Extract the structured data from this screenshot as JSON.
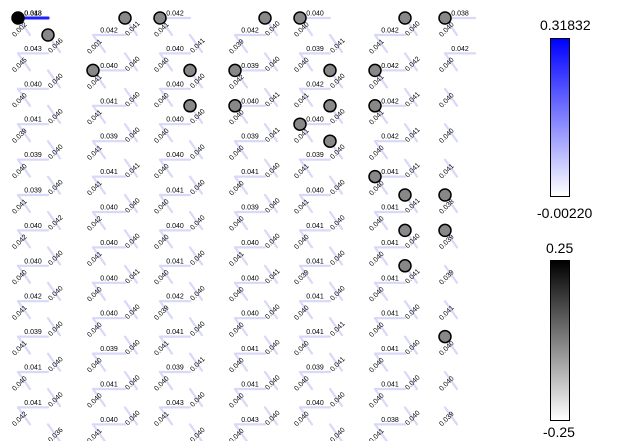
{
  "lattice": {
    "rows": [
      {
        "vl": [
          "0.002",
          "0.001",
          "0.041",
          "0.039",
          "0.040",
          "0.041",
          "0.040"
        ],
        "vr": [
          "0.046",
          "0.041",
          "0.041",
          "0.040",
          "0.041",
          "0.040"
        ],
        "h": [
          "0.318",
          "0.043",
          "0.042",
          "0.042",
          "0.042",
          "0.040",
          "0.042",
          "0.038"
        ]
      },
      {
        "vl": [
          "0.045",
          "0.041",
          "0.040",
          "0.042",
          "0.040",
          "0.041",
          "0.040"
        ],
        "vr": [
          "0.040",
          "0.040",
          "0.040",
          "0.040",
          "0.040",
          "0.042"
        ],
        "h": [
          "0.043",
          "0.040",
          "0.040",
          "0.039",
          "0.039",
          "0.042",
          "0.042"
        ]
      },
      {
        "vl": [
          "0.040",
          "0.041",
          "0.040",
          "0.040",
          "0.041",
          "0.041",
          "0.040"
        ],
        "vr": [
          "0.040",
          "0.040",
          "0.040",
          "0.041",
          "0.040",
          "0.041"
        ],
        "h": [
          "0.040",
          "0.041",
          "0.040",
          "0.040",
          "0.042",
          "0.042"
        ]
      },
      {
        "vl": [
          "0.039",
          "0.041",
          "0.040",
          "0.040",
          "0.041",
          "0.040",
          "0.040"
        ],
        "vr": [
          "0.040",
          "0.040",
          "0.040",
          "0.041",
          "0.040",
          "0.041"
        ],
        "h": [
          "0.041",
          "0.039",
          "0.040",
          "0.039",
          "0.040",
          "0.042"
        ]
      },
      {
        "vl": [
          "0.040",
          "0.041",
          "0.040",
          "0.040",
          "0.041",
          "0.040",
          "0.041"
        ],
        "vr": [
          "0.040",
          "0.041",
          "0.040",
          "0.040",
          "0.040",
          "0.041"
        ],
        "h": [
          "0.039",
          "0.041",
          "0.040",
          "0.041",
          "0.039",
          "0.041"
        ]
      },
      {
        "vl": [
          "0.041",
          "0.042",
          "0.040",
          "0.040",
          "0.041",
          "0.040",
          "0.038"
        ],
        "vr": [
          "0.042",
          "0.040",
          "0.040",
          "0.040",
          "0.040",
          "0.041"
        ],
        "h": [
          "0.039",
          "0.040",
          "0.041",
          "0.039",
          "0.040",
          "0.041"
        ]
      },
      {
        "vl": [
          "0.042",
          "0.041",
          "0.040",
          "0.041",
          "0.040",
          "0.040",
          "0.039"
        ],
        "vr": [
          "0.040",
          "0.040",
          "0.040",
          "0.040",
          "0.040",
          "0.040"
        ],
        "h": [
          "0.040",
          "0.040",
          "0.040",
          "0.040",
          "0.041",
          "0.041"
        ]
      },
      {
        "vl": [
          "0.040",
          "0.040",
          "0.040",
          "0.040",
          "0.039",
          "0.040",
          "0.039"
        ],
        "vr": [
          "0.040",
          "0.041",
          "0.040",
          "0.041",
          "0.040",
          "0.041"
        ],
        "h": [
          "0.040",
          "0.040",
          "0.041",
          "0.040",
          "0.041",
          "0.041"
        ]
      },
      {
        "vl": [
          "0.041",
          "0.040",
          "0.039",
          "0.040",
          "0.040",
          "0.040",
          "0.041"
        ],
        "vr": [
          "0.040",
          "0.040",
          "0.040",
          "0.040",
          "0.041",
          "0.040"
        ],
        "h": [
          "0.042",
          "0.040",
          "0.042",
          "0.040",
          "0.041",
          "0.041"
        ]
      },
      {
        "vl": [
          "0.041",
          "0.040",
          "0.041",
          "0.040",
          "0.040",
          "0.040",
          "0.040"
        ],
        "vr": [
          "0.040",
          "0.040",
          "0.041",
          "0.040",
          "0.041",
          "0.040"
        ],
        "h": [
          "0.039",
          "0.039",
          "0.041",
          "0.041",
          "0.041",
          "0.041"
        ]
      },
      {
        "vl": [
          "0.040",
          "0.040",
          "0.040",
          "0.040",
          "0.040",
          "0.040",
          "0.040"
        ],
        "vr": [
          "0.040",
          "0.040",
          "0.040",
          "0.040",
          "0.040",
          "0.040"
        ],
        "h": [
          "0.041",
          "0.041",
          "0.039",
          "0.041",
          "0.039",
          "0.041"
        ]
      },
      {
        "vl": [
          "0.042",
          "0.041",
          "0.041",
          "0.040",
          "0.040",
          "0.041",
          "0.039"
        ],
        "vr": [
          "0.036",
          "0.040",
          "0.040",
          "0.040",
          "0.040",
          "0.040"
        ],
        "h": [
          "0.041",
          "0.040",
          "0.043",
          "0.043",
          "0.040",
          "0.038"
        ]
      }
    ],
    "nodes": [
      {
        "r": 0,
        "c": 0,
        "color": "#000000"
      },
      {
        "r": 0,
        "c": 1,
        "color": "#888888"
      },
      {
        "r": 0,
        "c": 3,
        "color": "#888888"
      },
      {
        "r": 0,
        "c": 4,
        "color": "#888888"
      },
      {
        "r": 0,
        "c": 7,
        "color": "#888888"
      },
      {
        "r": 0,
        "c": 8,
        "color": "#888888"
      },
      {
        "r": 0,
        "c": 11,
        "color": "#888888"
      },
      {
        "r": 0,
        "c": 12,
        "color": "#888888"
      },
      {
        "r": 1,
        "c": 2,
        "color": "#888888"
      },
      {
        "r": 1,
        "c": 5,
        "color": "#888888"
      },
      {
        "r": 1,
        "c": 6,
        "color": "#888888"
      },
      {
        "r": 1,
        "c": 9,
        "color": "#888888"
      },
      {
        "r": 1,
        "c": 10,
        "color": "#888888"
      },
      {
        "r": 2,
        "c": 5,
        "color": "#888888"
      },
      {
        "r": 2,
        "c": 6,
        "color": "#888888"
      },
      {
        "r": 2,
        "c": 9,
        "color": "#888888"
      },
      {
        "r": 2,
        "c": 10,
        "color": "#888888"
      },
      {
        "r": 3,
        "c": 8,
        "color": "#888888"
      },
      {
        "r": 3,
        "c": 9,
        "color": "#888888"
      },
      {
        "r": 4,
        "c": 10,
        "color": "#888888"
      },
      {
        "r": 5,
        "c": 11,
        "color": "#888888"
      },
      {
        "r": 5,
        "c": 12,
        "color": "#888888"
      },
      {
        "r": 6,
        "c": 11,
        "color": "#888888"
      },
      {
        "r": 6,
        "c": 12,
        "color": "#888888"
      },
      {
        "r": 7,
        "c": 11,
        "color": "#888888"
      },
      {
        "r": 9,
        "c": 12,
        "color": "#888888"
      }
    ]
  },
  "colorbars": {
    "edge": {
      "max": "0.31832",
      "min": "-0.00220",
      "color_top": "#0000ff",
      "color_bottom": "#ffffff"
    },
    "node": {
      "max": "0.25",
      "min": "-0.25",
      "color_top": "#000000",
      "color_bottom": "#ffffff"
    }
  }
}
